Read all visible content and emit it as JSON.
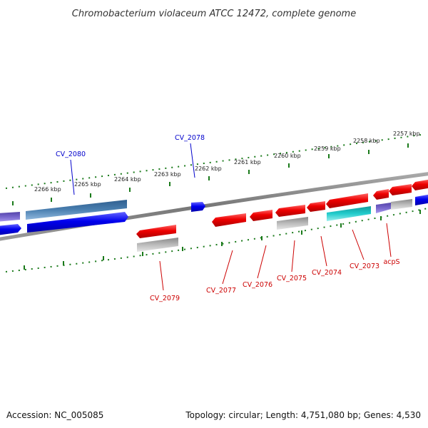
{
  "title": "Chromobacterium violaceum ATCC 12472, complete genome",
  "footer": {
    "accession": "Accession: NC_005085",
    "summary": "Topology: circular; Length: 4,751,080 bp; Genes: 4,530"
  },
  "colors": {
    "backbone": "#888888",
    "tick": "#1a7a1a",
    "gene_forward": "#0000ee",
    "gene_reverse": "#ee0000",
    "gene_blue_steel": "#4a7fb0",
    "gene_cyan": "#22cccc",
    "gene_gray": "#bbbbbb",
    "gene_purple": "#7766cc",
    "label_forward": "#0000cc",
    "label_reverse": "#cc0000"
  },
  "ticks": [
    {
      "label": "2257 kbp"
    },
    {
      "label": "2258 kbp"
    },
    {
      "label": "2259 kbp"
    },
    {
      "label": "2260 kbp"
    },
    {
      "label": "2261 kbp"
    },
    {
      "label": "2262 kbp"
    },
    {
      "label": "2263 kbp"
    },
    {
      "label": "2264 kbp"
    },
    {
      "label": "2265 kbp"
    },
    {
      "label": "2266 kbp"
    }
  ],
  "gene_labels": [
    {
      "name": "CV_2080",
      "strand": "forward"
    },
    {
      "name": "CV_2078",
      "strand": "forward"
    },
    {
      "name": "CV_2079",
      "strand": "reverse"
    },
    {
      "name": "CV_2077",
      "strand": "reverse"
    },
    {
      "name": "CV_2076",
      "strand": "reverse"
    },
    {
      "name": "CV_2075",
      "strand": "reverse"
    },
    {
      "name": "CV_2074",
      "strand": "reverse"
    },
    {
      "name": "CV_2073",
      "strand": "reverse"
    },
    {
      "name": "acpS",
      "strand": "reverse"
    }
  ]
}
